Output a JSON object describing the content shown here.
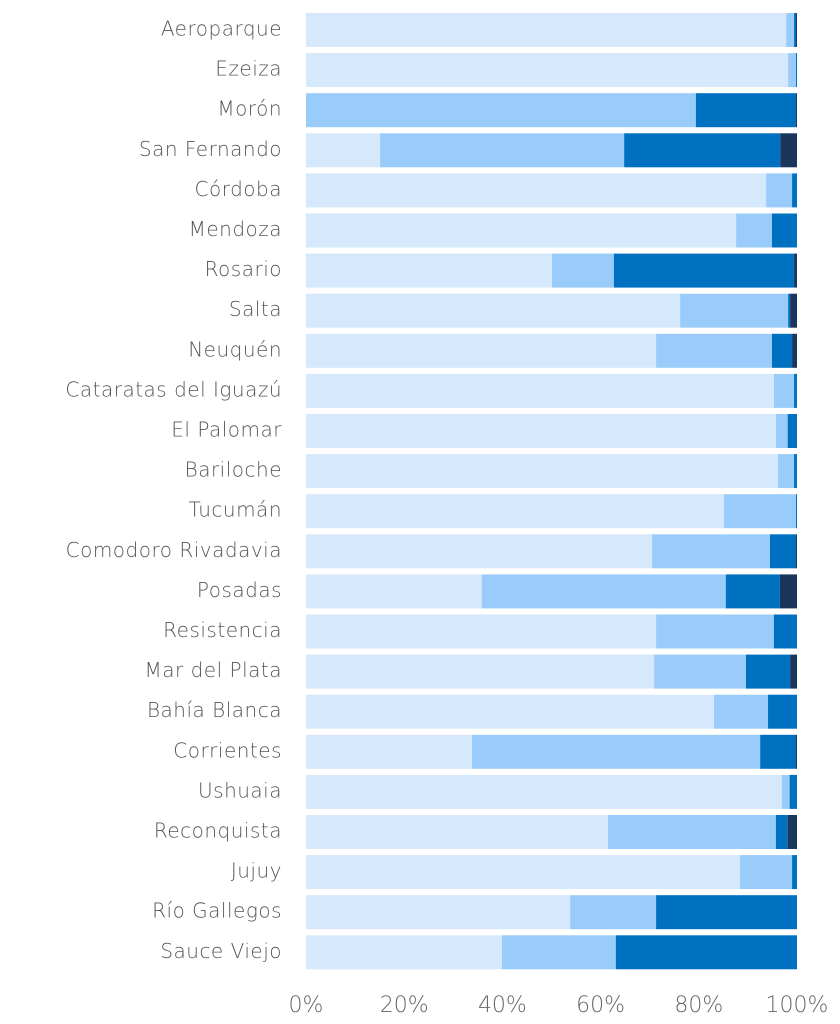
{
  "chart_data": {
    "type": "stacked_bar_horizontal",
    "categories": [
      "Aeroparque",
      "Ezeiza",
      "Morón",
      "San Fernando",
      "Córdoba",
      "Mendoza",
      "Rosario",
      "Salta",
      "Neuquén",
      "Cataratas del Iguazú",
      "El Palomar",
      "Bariloche",
      "Tucumán",
      "Comodoro Rivadavia",
      "Posadas",
      "Resistencia",
      "Mar del Plata",
      "Bahía Blanca",
      "Corrientes",
      "Ushuaia",
      "Reconquista",
      "Jujuy",
      "Río Gallegos",
      "Sauce Viejo"
    ],
    "series": [
      {
        "color": "#d6e8fb",
        "values": [
          97.8,
          98.2,
          0,
          15.1,
          93.7,
          87.6,
          50.1,
          76.2,
          71.3,
          95.3,
          95.7,
          96.1,
          85.1,
          70.5,
          35.8,
          71.3,
          70.9,
          83.1,
          33.8,
          96.9,
          61.5,
          88.4,
          53.8,
          39.9
        ]
      },
      {
        "color": "#99ccfa",
        "values": [
          1.6,
          1.6,
          79.4,
          49.7,
          5.3,
          7.3,
          12.6,
          22.0,
          23.6,
          4.1,
          2.4,
          3.3,
          14.7,
          24.0,
          49.7,
          24.0,
          18.7,
          11.0,
          58.7,
          1.6,
          34.2,
          10.6,
          17.5,
          23.2
        ]
      },
      {
        "color": "#0070c0",
        "values": [
          0.4,
          0.2,
          20.4,
          31.8,
          1.0,
          5.1,
          36.7,
          0.4,
          4.1,
          0.6,
          1.9,
          0.6,
          0.2,
          5.3,
          11.0,
          4.7,
          9.0,
          5.9,
          7.3,
          1.5,
          2.4,
          1.0,
          28.7,
          36.9
        ]
      },
      {
        "color": "#1b365d",
        "values": [
          0.2,
          0,
          0.2,
          3.4,
          0,
          0,
          0.6,
          1.4,
          1.0,
          0,
          0,
          0,
          0,
          0.2,
          3.5,
          0,
          1.4,
          0,
          0.2,
          0,
          1.9,
          0,
          0,
          0
        ]
      }
    ],
    "xlim": [
      0,
      100
    ],
    "xticks": [
      {
        "value": 0,
        "label": "0%"
      },
      {
        "value": 20,
        "label": "20%"
      },
      {
        "value": 40,
        "label": "40%"
      },
      {
        "value": 60,
        "label": "60%"
      },
      {
        "value": 80,
        "label": "80%"
      },
      {
        "value": 100,
        "label": "100%"
      }
    ]
  }
}
